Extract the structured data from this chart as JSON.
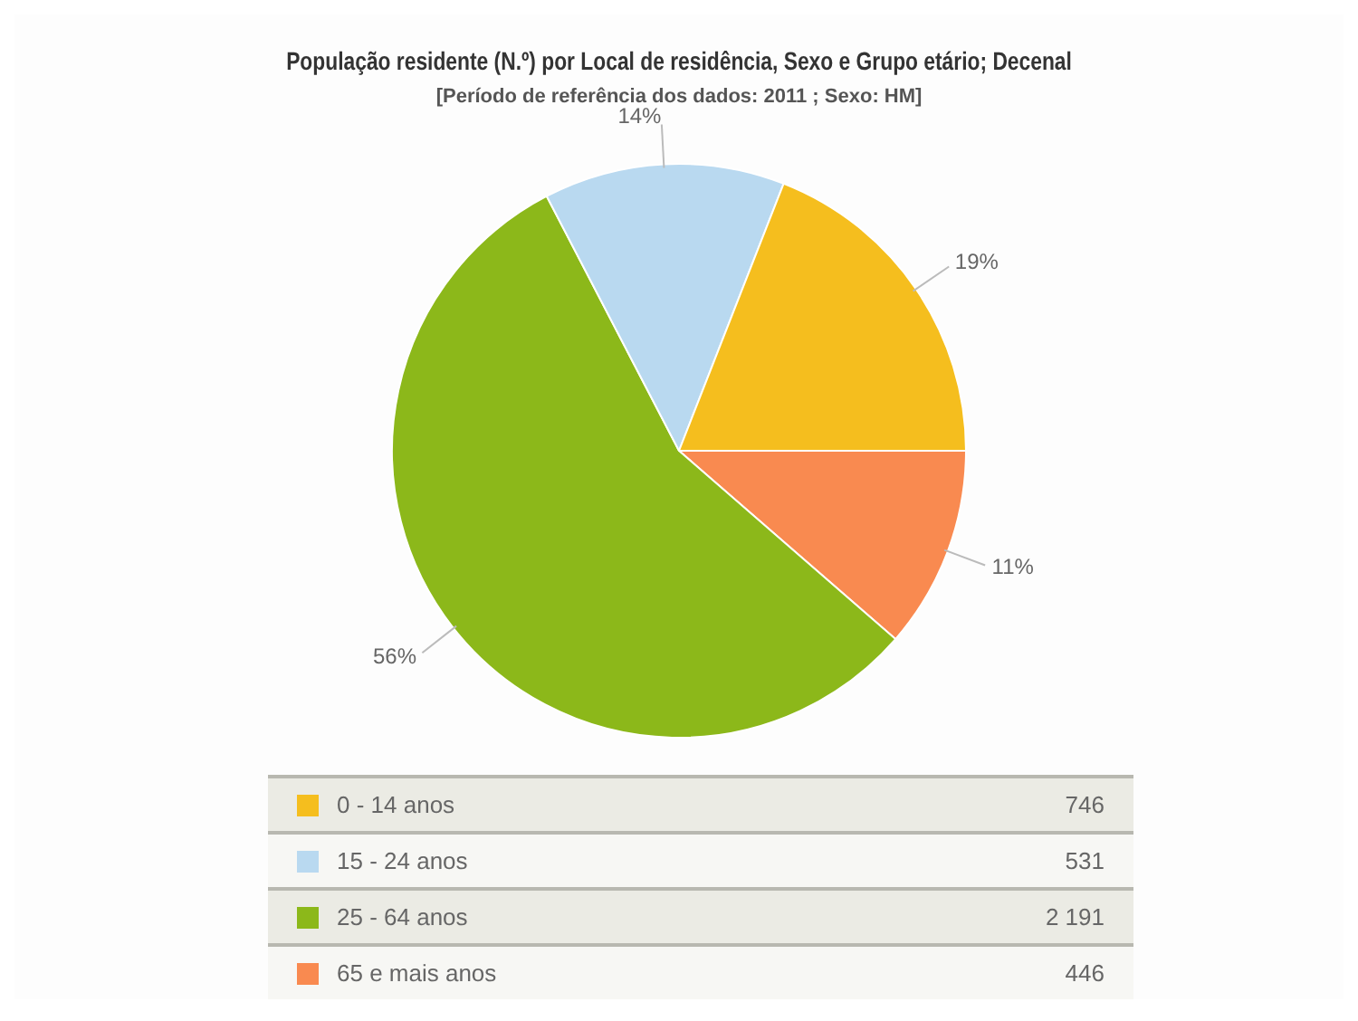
{
  "chart_data": {
    "type": "pie",
    "title": "População residente (N.º) por Local de residência, Sexo e Grupo etário; Decenal",
    "subtitle": "[Período de referência dos dados: 2011 ; Sexo: HM]",
    "categories": [
      "0 - 14 anos",
      "15 - 24 anos",
      "25 - 64 anos",
      "65 e mais anos"
    ],
    "values": [
      746,
      531,
      2191,
      446
    ],
    "value_labels": [
      "746",
      "531",
      "2 191",
      "446"
    ],
    "colors": [
      "#f5be1e",
      "#b9d9f0",
      "#8cb81a",
      "#f98a50"
    ],
    "annotations": [
      "19%",
      "14%",
      "56%",
      "11%"
    ],
    "legend": "bottom"
  }
}
